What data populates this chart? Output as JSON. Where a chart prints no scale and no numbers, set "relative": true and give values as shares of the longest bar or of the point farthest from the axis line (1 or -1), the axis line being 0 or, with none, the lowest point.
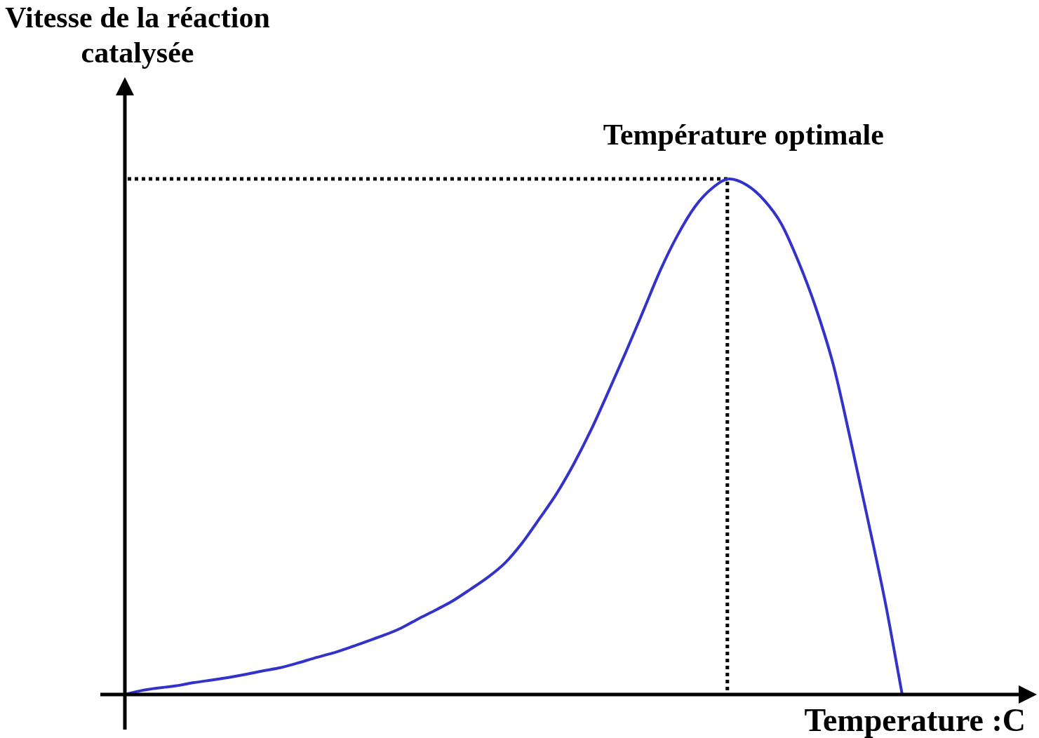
{
  "chart_data": {
    "type": "line",
    "relative": true,
    "xlabel": "Temperature :C",
    "ylabel": "Vitesse de la réaction catalysée",
    "categories": [
      null,
      null,
      null,
      null,
      null,
      null,
      null,
      null,
      null,
      null,
      null,
      null,
      null,
      null,
      null,
      null,
      null,
      null,
      null,
      null,
      null,
      null,
      null,
      null,
      null,
      null,
      null,
      null,
      null,
      null,
      null,
      null,
      null,
      null,
      null,
      null,
      null,
      null,
      null,
      null,
      null,
      null,
      null,
      null,
      null,
      null
    ],
    "values": [
      0,
      0.008,
      0.013,
      0.017,
      0.023,
      0.028,
      0.033,
      0.039,
      0.046,
      0.052,
      0.061,
      0.071,
      0.08,
      0.091,
      0.103,
      0.115,
      0.129,
      0.147,
      0.164,
      0.182,
      0.204,
      0.227,
      0.255,
      0.294,
      0.341,
      0.39,
      0.448,
      0.514,
      0.588,
      0.664,
      0.743,
      0.823,
      0.891,
      0.946,
      0.982,
      1,
      0.988,
      0.959,
      0.913,
      0.839,
      0.75,
      0.641,
      0.495,
      0.341,
      0.182,
      0
    ],
    "color": "#3333cc",
    "ref_lines": [
      {
        "axis": "y",
        "value": 1,
        "label": "Température optimale",
        "color": "#000000",
        "line_style": "dotted"
      }
    ],
    "marker": "none"
  }
}
